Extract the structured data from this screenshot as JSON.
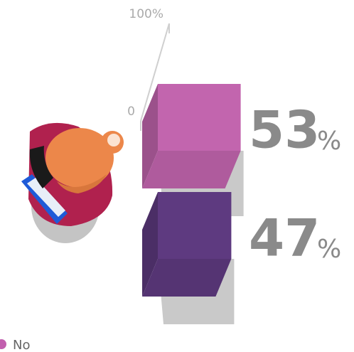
{
  "chart_data": {
    "type": "block-bar",
    "values": [
      53,
      47
    ],
    "unit": "%",
    "colors": [
      "#c265ae",
      "#5e3a80"
    ],
    "ylim": [
      0,
      100
    ],
    "yticks": [
      0,
      {
        "value": 100,
        "label": "100%"
      }
    ],
    "legend": {
      "label": "No",
      "color": "#c25fae"
    }
  }
}
